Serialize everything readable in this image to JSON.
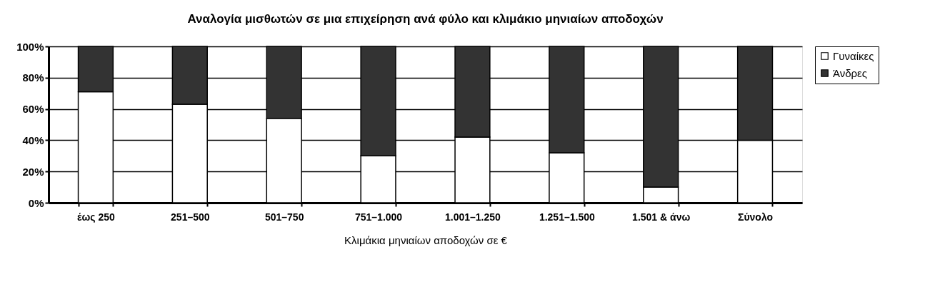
{
  "chart_data": {
    "type": "bar",
    "title": "Αναλογία μισθωτών σε μια επιχείρηση ανά φύλο και κλιμάκιο μηνιαίων αποδοχών",
    "xlabel": "Κλιμάκια μηνιαίων αποδοχών σε €",
    "categories": [
      "έως 250",
      "251–500",
      "501–750",
      "751–1.000",
      "1.001–1.250",
      "1.251–1.500",
      "1.501 & άνω",
      "Σύνολο"
    ],
    "stacked": true,
    "series": [
      {
        "name": "Γυναίκες",
        "color": "#ffffff",
        "values": [
          71,
          63,
          54,
          30,
          42,
          32,
          10,
          40
        ]
      },
      {
        "name": "Άνδρες",
        "color": "#333333",
        "values": [
          29,
          37,
          46,
          70,
          58,
          68,
          90,
          60
        ]
      }
    ],
    "ylim": [
      0,
      100
    ],
    "yticks": [
      {
        "value": 0,
        "label": "0%"
      },
      {
        "value": 20,
        "label": "20%"
      },
      {
        "value": 40,
        "label": "40%"
      },
      {
        "value": 60,
        "label": "60%"
      },
      {
        "value": 80,
        "label": "80%"
      },
      {
        "value": 100,
        "label": "100%"
      }
    ],
    "grid": "y",
    "legend": "right"
  }
}
